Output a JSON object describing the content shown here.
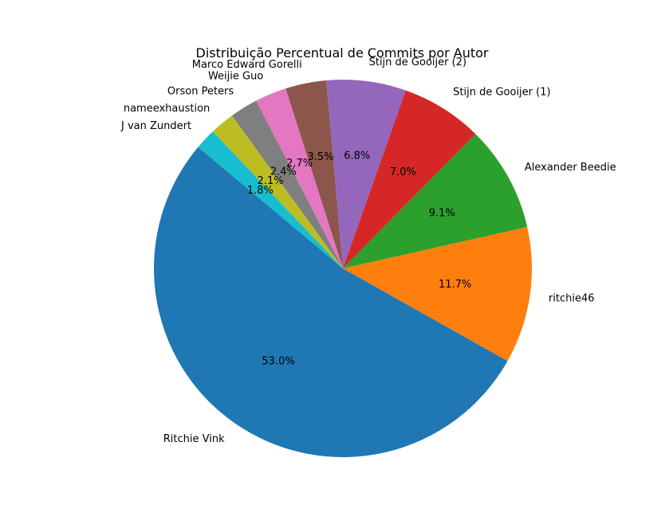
{
  "chart_data": {
    "type": "pie",
    "title": "Distribuição Percentual de Commits por Autor",
    "start_angle_deg": 140,
    "direction": "counterclockwise",
    "slices": [
      {
        "label": "Ritchie Vink",
        "value": 53.0,
        "pct_label": "53.0%",
        "color": "#1f77b4"
      },
      {
        "label": "ritchie46",
        "value": 11.7,
        "pct_label": "11.7%",
        "color": "#ff7f0e"
      },
      {
        "label": "Alexander Beedie",
        "value": 9.1,
        "pct_label": "9.1%",
        "color": "#2ca02c"
      },
      {
        "label": "Stijn de Gooijer (1)",
        "value": 7.0,
        "pct_label": "7.0%",
        "color": "#d62728"
      },
      {
        "label": "Stijn de Gooijer (2)",
        "value": 6.8,
        "pct_label": "6.8%",
        "color": "#9467bd"
      },
      {
        "label": "Marco Edward Gorelli",
        "value": 3.5,
        "pct_label": "3.5%",
        "color": "#8c564b"
      },
      {
        "label": "Weijie Guo",
        "value": 2.7,
        "pct_label": "2.7%",
        "color": "#e377c2"
      },
      {
        "label": "Orson Peters",
        "value": 2.4,
        "pct_label": "2.4%",
        "color": "#7f7f7f"
      },
      {
        "label": "nameexhaustion",
        "value": 2.1,
        "pct_label": "2.1%",
        "color": "#bcbd22"
      },
      {
        "label": "J van Zundert",
        "value": 1.8,
        "pct_label": "1.8%",
        "color": "#17becf"
      }
    ]
  }
}
